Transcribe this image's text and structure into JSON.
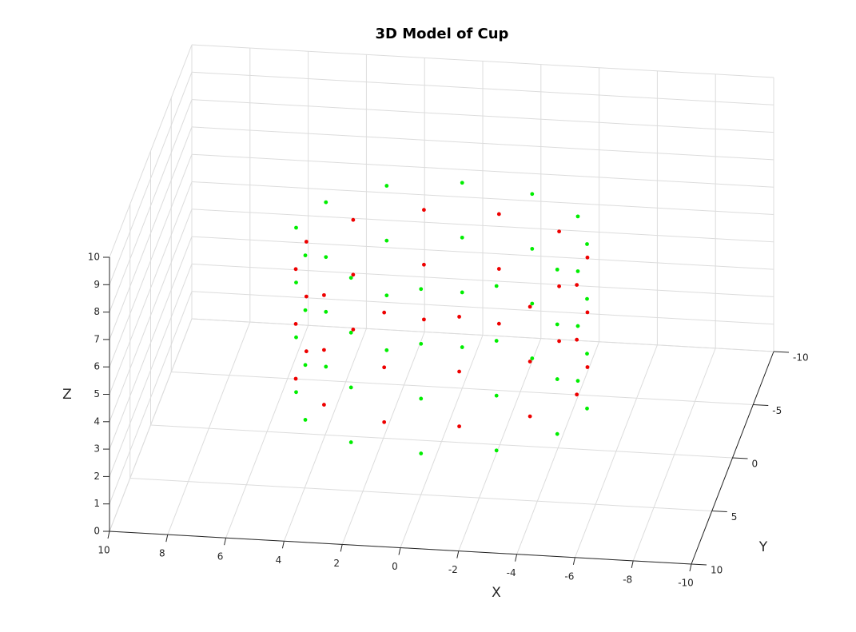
{
  "chart_data": {
    "type": "scatter3d",
    "title": "3D Model of Cup",
    "xlabel": "X",
    "ylabel": "Y",
    "zlabel": "Z",
    "xlim": [
      -10,
      10
    ],
    "ylim": [
      -10,
      10
    ],
    "zlim": [
      0,
      10
    ],
    "xticks": [
      10,
      8,
      6,
      4,
      2,
      0,
      -2,
      -4,
      -6,
      -8,
      -10
    ],
    "yticks": [
      -10,
      -5,
      0,
      5,
      10
    ],
    "zticks": [
      0,
      1,
      2,
      3,
      4,
      5,
      6,
      7,
      8,
      9,
      10
    ],
    "grid": true,
    "series": [
      {
        "color": "#00ee00",
        "x": [
          5,
          4.33,
          2.5,
          0,
          -2.5,
          -4.33,
          -5,
          -4.33,
          -2.5,
          0,
          2.5,
          4.33,
          5,
          4.33,
          2.5,
          0,
          -2.5,
          -4.33,
          -5,
          -4.33,
          -2.5,
          0,
          2.5,
          4.33,
          5,
          4.33,
          2.5,
          0,
          -2.5,
          -4.33,
          -5,
          -4.33,
          -2.5,
          0,
          2.5,
          4.33,
          5,
          4.33,
          2.5,
          0,
          -2.5,
          -4.33,
          -5,
          -4.33,
          -2.5,
          0,
          2.5,
          4.33
        ],
        "y": [
          0,
          2.5,
          4.33,
          5,
          4.33,
          2.5,
          0,
          -2.5,
          -4.33,
          -5,
          -4.33,
          -2.5,
          0,
          2.5,
          4.33,
          5,
          4.33,
          2.5,
          0,
          -2.5,
          -4.33,
          -5,
          -4.33,
          -2.5,
          0,
          2.5,
          4.33,
          5,
          4.33,
          2.5,
          0,
          -2.5,
          -4.33,
          -5,
          -4.33,
          -2.5,
          0,
          2.5,
          4.33,
          5,
          4.33,
          2.5,
          0,
          -2.5,
          -4.33,
          -5,
          -4.33,
          -2.5
        ],
        "z": [
          7.5,
          7.5,
          7.5,
          7.5,
          7.5,
          7.5,
          7.5,
          7.5,
          7.5,
          7.5,
          7.5,
          7.5,
          5.5,
          5.5,
          5.5,
          5.5,
          5.5,
          5.5,
          5.5,
          5.5,
          5.5,
          5.5,
          5.5,
          5.5,
          3.5,
          3.5,
          3.5,
          3.5,
          3.5,
          3.5,
          3.5,
          3.5,
          3.5,
          3.5,
          3.5,
          3.5,
          1.5,
          1.5,
          1.5,
          1.5,
          1.5,
          1.5,
          1.5,
          1.5,
          1.5,
          1.5,
          1.5,
          1.5
        ]
      },
      {
        "color": "#ee0000",
        "x": [
          4.83,
          3.54,
          1.29,
          -1.29,
          -3.54,
          -4.83,
          -4.83,
          -3.54,
          -1.29,
          1.29,
          3.54,
          4.83,
          4.83,
          3.54,
          1.29,
          -1.29,
          -3.54,
          -4.83,
          -4.83,
          -3.54,
          -1.29,
          1.29,
          3.54,
          4.83,
          4.83,
          3.54,
          1.29,
          -1.29,
          -3.54,
          -4.83,
          -4.83,
          -3.54,
          -1.29,
          1.29,
          3.54,
          4.83
        ],
        "y": [
          1.29,
          3.54,
          4.83,
          4.83,
          3.54,
          1.29,
          -1.29,
          -3.54,
          -4.83,
          -4.83,
          -3.54,
          -1.29,
          1.29,
          3.54,
          4.83,
          4.83,
          3.54,
          1.29,
          -1.29,
          -3.54,
          -4.83,
          -4.83,
          -3.54,
          -1.29,
          1.29,
          3.54,
          4.83,
          4.83,
          3.54,
          1.29,
          -1.29,
          -3.54,
          -4.83,
          -4.83,
          -3.54,
          -1.29
        ],
        "z": [
          6.5,
          6.5,
          6.5,
          6.5,
          6.5,
          6.5,
          6.5,
          6.5,
          6.5,
          6.5,
          6.5,
          6.5,
          4.5,
          4.5,
          4.5,
          4.5,
          4.5,
          4.5,
          4.5,
          4.5,
          4.5,
          4.5,
          4.5,
          4.5,
          2.5,
          2.5,
          2.5,
          2.5,
          2.5,
          2.5,
          2.5,
          2.5,
          2.5,
          2.5,
          2.5,
          2.5
        ]
      }
    ]
  }
}
